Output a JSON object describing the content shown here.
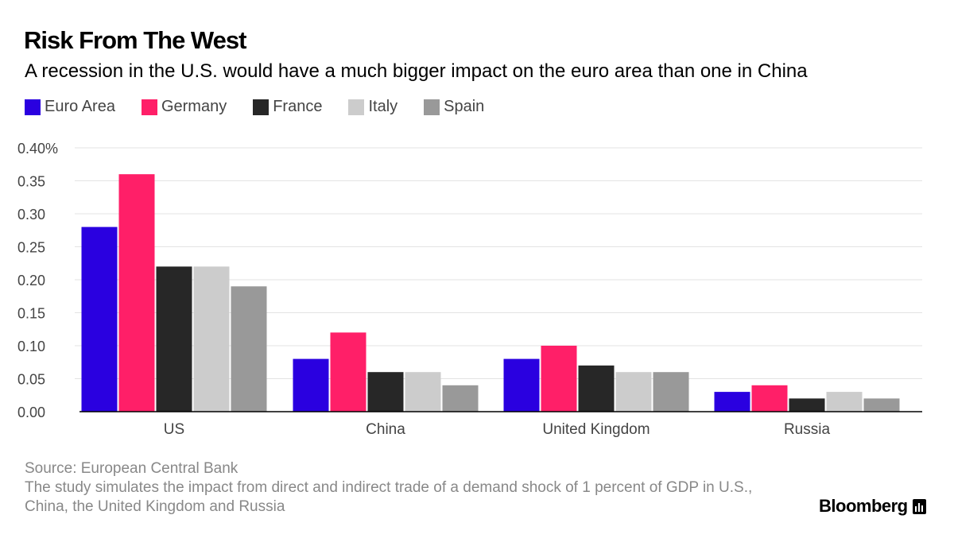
{
  "title": "Risk From The West",
  "subtitle": "A recession in the U.S. would have a much bigger impact on the euro area than one in China",
  "footer": {
    "source": "Source: European Central Bank",
    "note": "The study simulates the impact from direct and indirect trade of a demand shock of 1 percent of GDP in U.S., China, the United Kingdom and Russia"
  },
  "brand": {
    "name": "Bloomberg",
    "icon": "bloomberg-chart-icon"
  },
  "chart_data": {
    "type": "bar",
    "title": "Risk From The West",
    "categories": [
      "US",
      "China",
      "United Kingdom",
      "Russia"
    ],
    "series": [
      {
        "name": "Euro Area",
        "color": "#2a00e0",
        "values": [
          0.28,
          0.08,
          0.08,
          0.03
        ]
      },
      {
        "name": "Germany",
        "color": "#ff1f68",
        "values": [
          0.36,
          0.12,
          0.1,
          0.04
        ]
      },
      {
        "name": "France",
        "color": "#272727",
        "values": [
          0.22,
          0.06,
          0.07,
          0.02
        ]
      },
      {
        "name": "Italy",
        "color": "#cccccc",
        "values": [
          0.22,
          0.06,
          0.06,
          0.03
        ]
      },
      {
        "name": "Spain",
        "color": "#999999",
        "values": [
          0.19,
          0.04,
          0.06,
          0.02
        ]
      }
    ],
    "ylim": [
      0,
      0.4
    ],
    "yticks": [
      "0.00",
      "0.05",
      "0.10",
      "0.15",
      "0.20",
      "0.25",
      "0.30",
      "0.35",
      "0.40%"
    ],
    "xlabel": "",
    "ylabel": "",
    "grid": true,
    "legend": "top-left"
  }
}
